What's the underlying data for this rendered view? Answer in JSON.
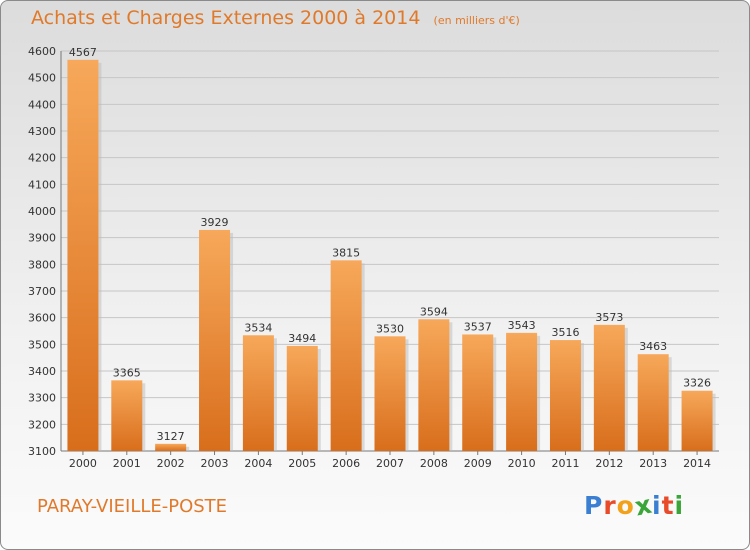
{
  "title": "Achats et Charges Externes 2000 à 2014",
  "unit_note": "(en milliers d'€)",
  "town": "PARAY-VIEILLE-POSTE",
  "brand": [
    "P",
    "r",
    "o",
    "x",
    "i",
    "t",
    "i"
  ],
  "colors": {
    "title": "#e07a2a",
    "bar_light": "#f7a85a",
    "bar_dark": "#d86e1c",
    "grid": "#c6c6c6",
    "brand": [
      "#3a7fd1",
      "#e84b2a",
      "#f2a21a",
      "#3aa63a",
      "#3a7fd1",
      "#e84b2a",
      "#3aa63a"
    ]
  },
  "chart_data": {
    "type": "bar",
    "categories": [
      "2000",
      "2001",
      "2002",
      "2003",
      "2004",
      "2005",
      "2006",
      "2007",
      "2008",
      "2009",
      "2010",
      "2011",
      "2012",
      "2013",
      "2014"
    ],
    "values": [
      4567,
      3365,
      3127,
      3929,
      3534,
      3494,
      3815,
      3530,
      3594,
      3537,
      3543,
      3516,
      3573,
      3463,
      3326
    ],
    "ylim": [
      3100,
      4600
    ],
    "yticks": [
      3100,
      3200,
      3300,
      3400,
      3500,
      3600,
      3700,
      3800,
      3900,
      4000,
      4100,
      4200,
      4300,
      4400,
      4500,
      4600
    ],
    "grid": true,
    "data_labels": true
  }
}
